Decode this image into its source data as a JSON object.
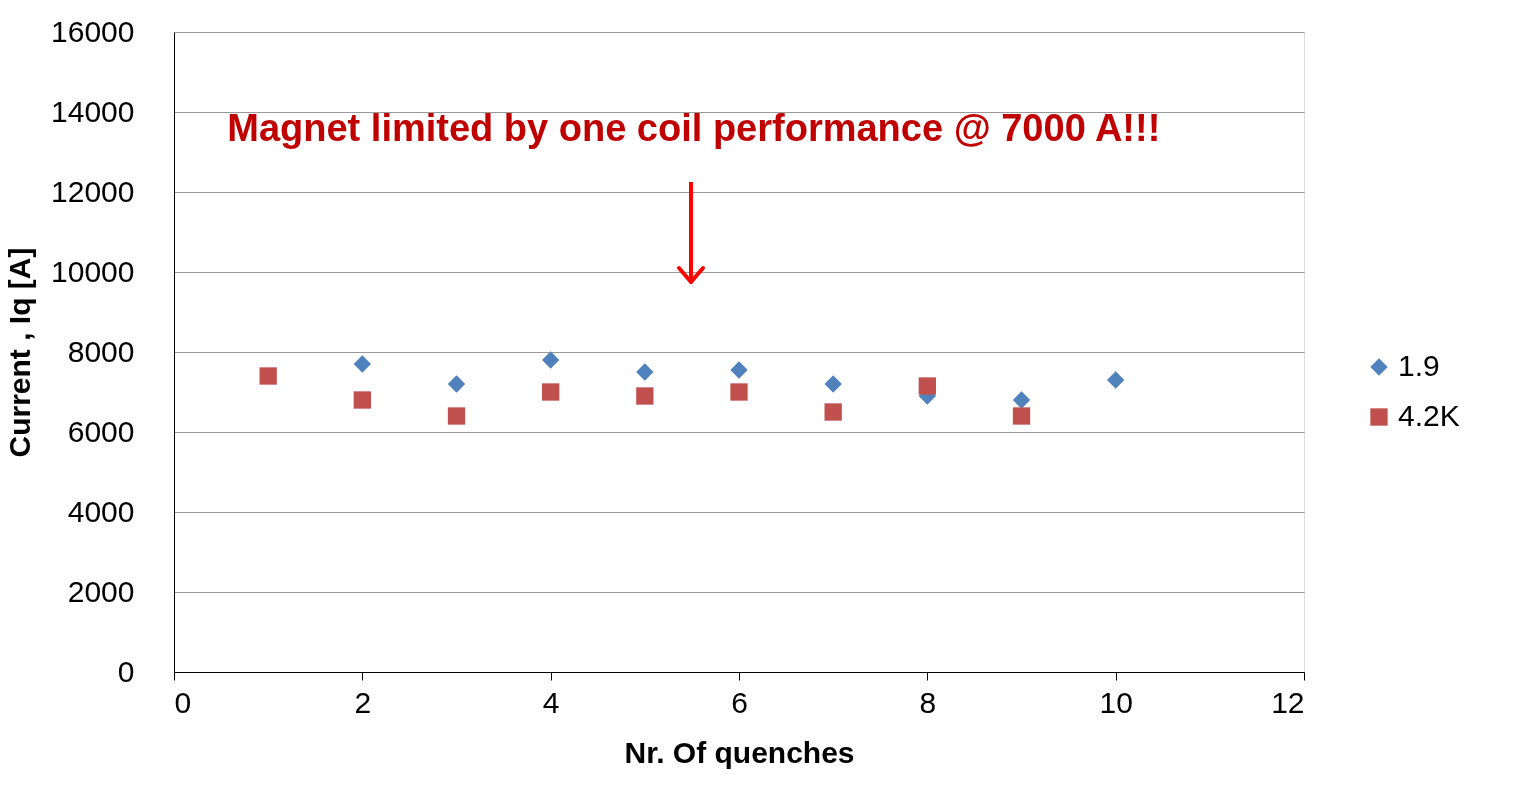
{
  "chart_data": {
    "type": "scatter",
    "xlabel": "Nr. Of quenches",
    "ylabel": "Current , Iq [A]",
    "annotations": [
      "Magnet limited by one coil performance @ 7000 A!!!"
    ],
    "x": [
      1,
      2,
      3,
      4,
      5,
      6,
      7,
      8,
      9,
      10
    ],
    "series": [
      {
        "name": "1.9",
        "color": "#4f81bd",
        "marker": "diamond",
        "values": [
          null,
          7700,
          7200,
          7800,
          7500,
          7550,
          7200,
          6900,
          6800,
          7300
        ]
      },
      {
        "name": "4.2K",
        "color": "#c0504d",
        "marker": "square",
        "values": [
          7400,
          6800,
          6400,
          7000,
          6900,
          7000,
          6500,
          7150,
          6400,
          null
        ]
      }
    ],
    "xlim": [
      0,
      12
    ],
    "xticks": [
      0,
      2,
      4,
      6,
      8,
      10,
      12
    ],
    "ylim": [
      0,
      16000
    ],
    "yticks": [
      0,
      2000,
      4000,
      6000,
      8000,
      10000,
      12000,
      14000,
      16000
    ],
    "grid": "y",
    "legend": "right"
  }
}
